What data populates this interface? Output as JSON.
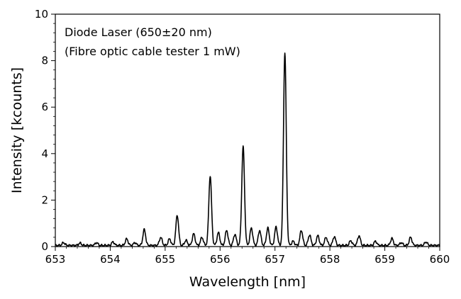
{
  "chart_data": {
    "type": "line",
    "annotation_lines": [
      "Diode Laser (650±20 nm)",
      "(Fibre optic cable tester 1 mW)"
    ],
    "xlabel": "Wavelength [nm]",
    "ylabel": "Intensity [kcounts]",
    "xlim": [
      653,
      660
    ],
    "ylim": [
      0,
      10
    ],
    "xticks": [
      653,
      654,
      655,
      656,
      657,
      658,
      659,
      660
    ],
    "yticks": [
      0,
      2,
      4,
      6,
      8,
      10
    ],
    "grid": false,
    "line_color": "#000000",
    "baseline": 0.05,
    "peaks": [
      {
        "x": 653.15,
        "y": 0.12
      },
      {
        "x": 653.45,
        "y": 0.1
      },
      {
        "x": 653.75,
        "y": 0.12
      },
      {
        "x": 654.05,
        "y": 0.15
      },
      {
        "x": 654.3,
        "y": 0.28
      },
      {
        "x": 654.45,
        "y": 0.12
      },
      {
        "x": 654.62,
        "y": 0.68
      },
      {
        "x": 654.92,
        "y": 0.35
      },
      {
        "x": 655.08,
        "y": 0.28
      },
      {
        "x": 655.22,
        "y": 1.3
      },
      {
        "x": 655.38,
        "y": 0.22
      },
      {
        "x": 655.52,
        "y": 0.5
      },
      {
        "x": 655.67,
        "y": 0.35
      },
      {
        "x": 655.82,
        "y": 3.0
      },
      {
        "x": 655.97,
        "y": 0.55
      },
      {
        "x": 656.12,
        "y": 0.65
      },
      {
        "x": 656.27,
        "y": 0.48
      },
      {
        "x": 656.42,
        "y": 4.25
      },
      {
        "x": 656.57,
        "y": 0.75
      },
      {
        "x": 656.72,
        "y": 0.65
      },
      {
        "x": 656.87,
        "y": 0.75
      },
      {
        "x": 657.02,
        "y": 0.8
      },
      {
        "x": 657.18,
        "y": 8.3
      },
      {
        "x": 657.33,
        "y": 0.18
      },
      {
        "x": 657.48,
        "y": 0.65
      },
      {
        "x": 657.63,
        "y": 0.45
      },
      {
        "x": 657.78,
        "y": 0.42
      },
      {
        "x": 657.93,
        "y": 0.35
      },
      {
        "x": 658.08,
        "y": 0.38
      },
      {
        "x": 658.38,
        "y": 0.2
      },
      {
        "x": 658.53,
        "y": 0.42
      },
      {
        "x": 658.83,
        "y": 0.18
      },
      {
        "x": 659.13,
        "y": 0.3
      },
      {
        "x": 659.3,
        "y": 0.12
      },
      {
        "x": 659.47,
        "y": 0.35
      },
      {
        "x": 659.75,
        "y": 0.15
      }
    ]
  }
}
